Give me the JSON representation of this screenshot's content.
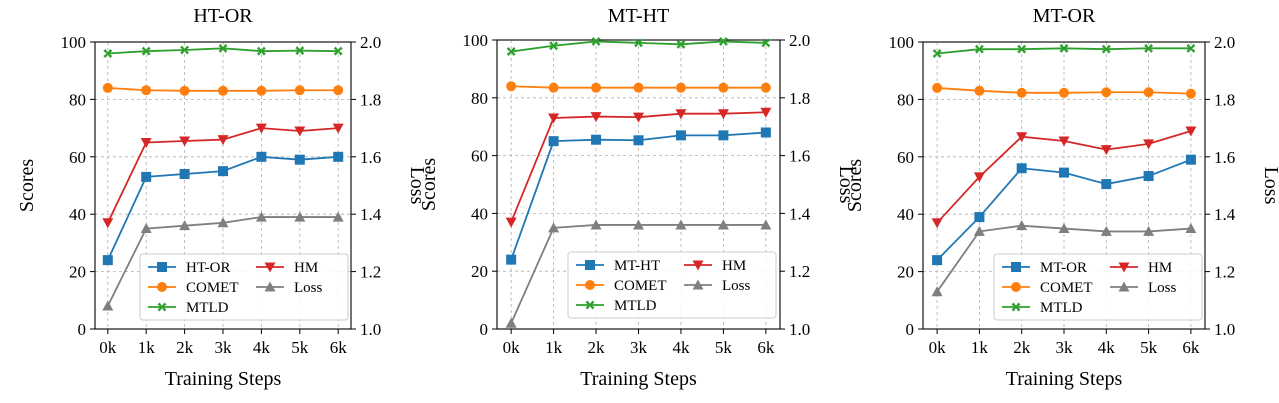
{
  "chart_data": [
    {
      "type": "line",
      "title": "HT-OR",
      "xlabel": "Training Steps",
      "ylabel": "Scores",
      "y2label": "Loss",
      "categories": [
        "0k",
        "1k",
        "2k",
        "3k",
        "4k",
        "5k",
        "6k"
      ],
      "ylim": [
        0,
        100
      ],
      "y2lim": [
        1.0,
        2.0
      ],
      "yticks": [
        "0",
        "20",
        "40",
        "60",
        "80",
        "100"
      ],
      "y2ticks": [
        "1.0",
        "1.2",
        "1.4",
        "1.6",
        "1.8",
        "2.0"
      ],
      "grid": true,
      "legend_position": "bottom-right",
      "series": [
        {
          "name": "HT-OR",
          "axis": "left",
          "color": "#1f77b4",
          "marker": "square",
          "values": [
            24,
            53,
            54,
            55,
            60,
            59,
            60
          ]
        },
        {
          "name": "HM",
          "axis": "left",
          "color": "#d62728",
          "marker": "triangle-down",
          "values": [
            37,
            65,
            65.5,
            66,
            70,
            69,
            70
          ]
        },
        {
          "name": "COMET",
          "axis": "left",
          "color": "#ff7f0e",
          "marker": "circle",
          "values": [
            84,
            83.2,
            83,
            83,
            83,
            83.2,
            83.2
          ]
        },
        {
          "name": "Loss",
          "axis": "right",
          "color": "#7f7f7f",
          "marker": "triangle-up",
          "values": [
            1.08,
            1.35,
            1.36,
            1.37,
            1.39,
            1.39,
            1.39
          ]
        },
        {
          "name": "MTLD",
          "axis": "left",
          "color": "#2ca02c",
          "marker": "x",
          "values": [
            96,
            96.8,
            97.2,
            97.8,
            96.8,
            97,
            96.8
          ]
        }
      ]
    },
    {
      "type": "line",
      "title": "MT-HT",
      "xlabel": "Training Steps",
      "ylabel": "Scores",
      "y2label": "Loss",
      "categories": [
        "0k",
        "1k",
        "2k",
        "3k",
        "4k",
        "5k",
        "6k"
      ],
      "ylim": [
        0,
        100
      ],
      "y2lim": [
        1.0,
        2.0
      ],
      "yticks": [
        "0",
        "20",
        "40",
        "60",
        "80",
        "100"
      ],
      "y2ticks": [
        "1.0",
        "1.2",
        "1.4",
        "1.6",
        "1.8",
        "2.0"
      ],
      "grid": true,
      "legend_position": "bottom-right",
      "series": [
        {
          "name": "MT-HT",
          "axis": "left",
          "color": "#1f77b4",
          "marker": "square",
          "values": [
            24,
            65,
            65.5,
            65.3,
            67,
            67,
            68
          ]
        },
        {
          "name": "HM",
          "axis": "left",
          "color": "#d62728",
          "marker": "triangle-down",
          "values": [
            37,
            73,
            73.5,
            73.3,
            74.5,
            74.5,
            75
          ]
        },
        {
          "name": "COMET",
          "axis": "left",
          "color": "#ff7f0e",
          "marker": "circle",
          "values": [
            84,
            83.5,
            83.5,
            83.5,
            83.5,
            83.5,
            83.5
          ]
        },
        {
          "name": "Loss",
          "axis": "right",
          "color": "#7f7f7f",
          "marker": "triangle-up",
          "values": [
            1.02,
            1.35,
            1.36,
            1.36,
            1.36,
            1.36,
            1.36
          ]
        },
        {
          "name": "MTLD",
          "axis": "left",
          "color": "#2ca02c",
          "marker": "x",
          "values": [
            96,
            98,
            99.5,
            99,
            98.5,
            99.5,
            99
          ]
        }
      ]
    },
    {
      "type": "line",
      "title": "MT-OR",
      "xlabel": "Training Steps",
      "ylabel": "Scores",
      "y2label": "Loss",
      "categories": [
        "0k",
        "1k",
        "2k",
        "3k",
        "4k",
        "5k",
        "6k"
      ],
      "ylim": [
        0,
        100
      ],
      "y2lim": [
        1.0,
        2.0
      ],
      "yticks": [
        "0",
        "20",
        "40",
        "60",
        "80",
        "100"
      ],
      "y2ticks": [
        "1.0",
        "1.2",
        "1.4",
        "1.6",
        "1.8",
        "2.0"
      ],
      "grid": true,
      "legend_position": "bottom-right",
      "series": [
        {
          "name": "MT-OR",
          "axis": "left",
          "color": "#1f77b4",
          "marker": "square",
          "values": [
            24,
            39,
            56,
            54.5,
            50.5,
            53.3,
            59
          ]
        },
        {
          "name": "HM",
          "axis": "left",
          "color": "#d62728",
          "marker": "triangle-down",
          "values": [
            37,
            53,
            67,
            65.5,
            62.5,
            64.5,
            69
          ]
        },
        {
          "name": "COMET",
          "axis": "left",
          "color": "#ff7f0e",
          "marker": "circle",
          "values": [
            84,
            83,
            82.3,
            82.3,
            82.5,
            82.5,
            82
          ]
        },
        {
          "name": "Loss",
          "axis": "right",
          "color": "#7f7f7f",
          "marker": "triangle-up",
          "values": [
            1.13,
            1.34,
            1.36,
            1.35,
            1.34,
            1.34,
            1.35
          ]
        },
        {
          "name": "MTLD",
          "axis": "left",
          "color": "#2ca02c",
          "marker": "x",
          "values": [
            96,
            97.5,
            97.5,
            97.8,
            97.5,
            97.8,
            97.8
          ]
        }
      ]
    }
  ]
}
